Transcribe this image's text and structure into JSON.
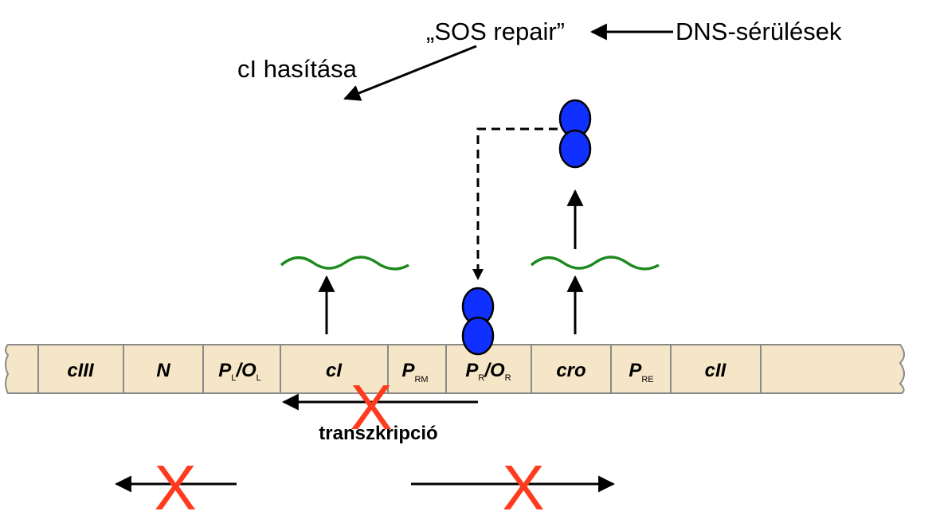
{
  "labels": {
    "sos_repair": "„SOS repair”",
    "dns_damage": "DNS-sérülések",
    "ci_cleavage": "cI hasítása",
    "transcription": "transzkripció",
    "cross_mark": "X"
  },
  "segments": [
    {
      "main": "cIII",
      "sub": ""
    },
    {
      "main": "N",
      "sub": ""
    },
    {
      "main": "P",
      "sub": "L",
      "main2": "/O",
      "sub2": "L"
    },
    {
      "main": "cI",
      "sub": ""
    },
    {
      "main": "P",
      "sub": "RM"
    },
    {
      "main": "P",
      "sub": "R",
      "main2": "/O",
      "sub2": "R"
    },
    {
      "main": "cro",
      "sub": ""
    },
    {
      "main": "P",
      "sub": "RE"
    },
    {
      "main": "cII",
      "sub": ""
    }
  ],
  "colors": {
    "dna_fill": "#f6e6c8",
    "dna_stroke": "#8a8a8a",
    "protein_fill": "#1030ff",
    "mrna": "#1e8a1e",
    "cross": "#ff3b1f",
    "arrow": "#000000"
  }
}
